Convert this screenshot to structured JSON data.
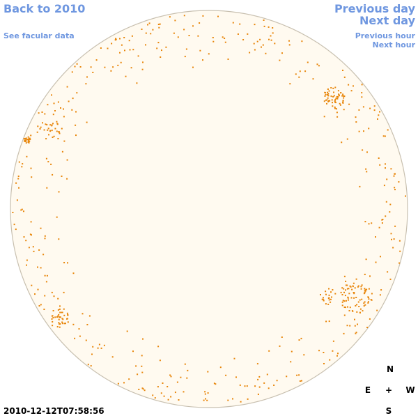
{
  "nav": {
    "back_label": "Back to 2010",
    "facular_label": "See facular data",
    "prev_day_label": "Previous day",
    "next_day_label": "Next day",
    "prev_hour_label": "Previous hour",
    "next_hour_label": "Next hour"
  },
  "compass": {
    "north": "N",
    "east": "E",
    "center": "+",
    "west": "W",
    "south": "S"
  },
  "timestamp": "2010-12-12T07:58:56",
  "colors": {
    "link": "#6f97e0",
    "disk_fill": "#fffaf0",
    "disk_border": "#c8c0b0",
    "facula": "#e8860a"
  }
}
